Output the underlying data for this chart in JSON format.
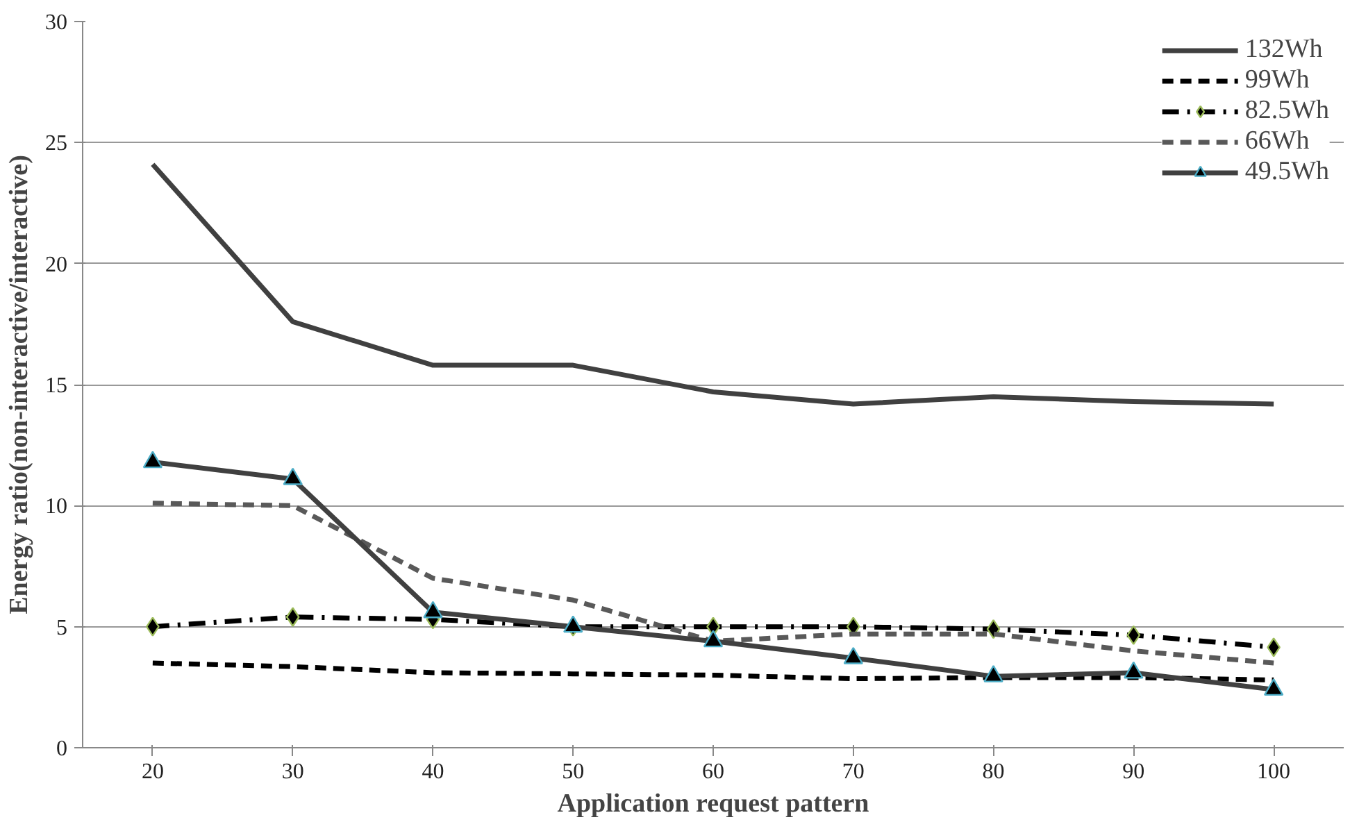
{
  "chart_data": {
    "type": "line",
    "xlabel": "Application request pattern",
    "ylabel": "Energy ratio(non-interactive/interactive)",
    "categories": [
      "20",
      "30",
      "40",
      "50",
      "60",
      "70",
      "80",
      "90",
      "100"
    ],
    "ylim": [
      0,
      30
    ],
    "yticks": [
      0,
      5,
      10,
      15,
      20,
      25,
      30
    ],
    "grid": "y",
    "legend": "top right",
    "series": [
      {
        "name": "132Wh",
        "color": "#404040",
        "line_style": "solid",
        "marker": "none",
        "values": [
          24.1,
          17.6,
          15.8,
          15.8,
          14.7,
          14.2,
          14.5,
          14.3,
          14.2
        ]
      },
      {
        "name": "99Wh",
        "color": "#000000",
        "line_style": "dashed",
        "marker": "none",
        "values": [
          3.5,
          3.35,
          3.1,
          3.05,
          3.0,
          2.85,
          2.9,
          2.9,
          2.8
        ]
      },
      {
        "name": "82.5Wh",
        "color": "#000000",
        "line_style": "dashdot",
        "marker": "diamond",
        "values": [
          5.0,
          5.4,
          5.3,
          5.0,
          5.0,
          5.0,
          4.9,
          4.65,
          4.15
        ]
      },
      {
        "name": "66Wh",
        "color": "#595959",
        "line_style": "dashed",
        "marker": "none",
        "values": [
          10.1,
          10.0,
          7.0,
          6.1,
          4.4,
          4.7,
          4.7,
          4.0,
          3.5
        ]
      },
      {
        "name": "49.5Wh",
        "color": "#404040",
        "line_style": "solid",
        "marker": "triangle",
        "values": [
          11.8,
          11.1,
          5.6,
          5.0,
          4.4,
          3.7,
          2.95,
          3.1,
          2.4
        ]
      }
    ]
  }
}
